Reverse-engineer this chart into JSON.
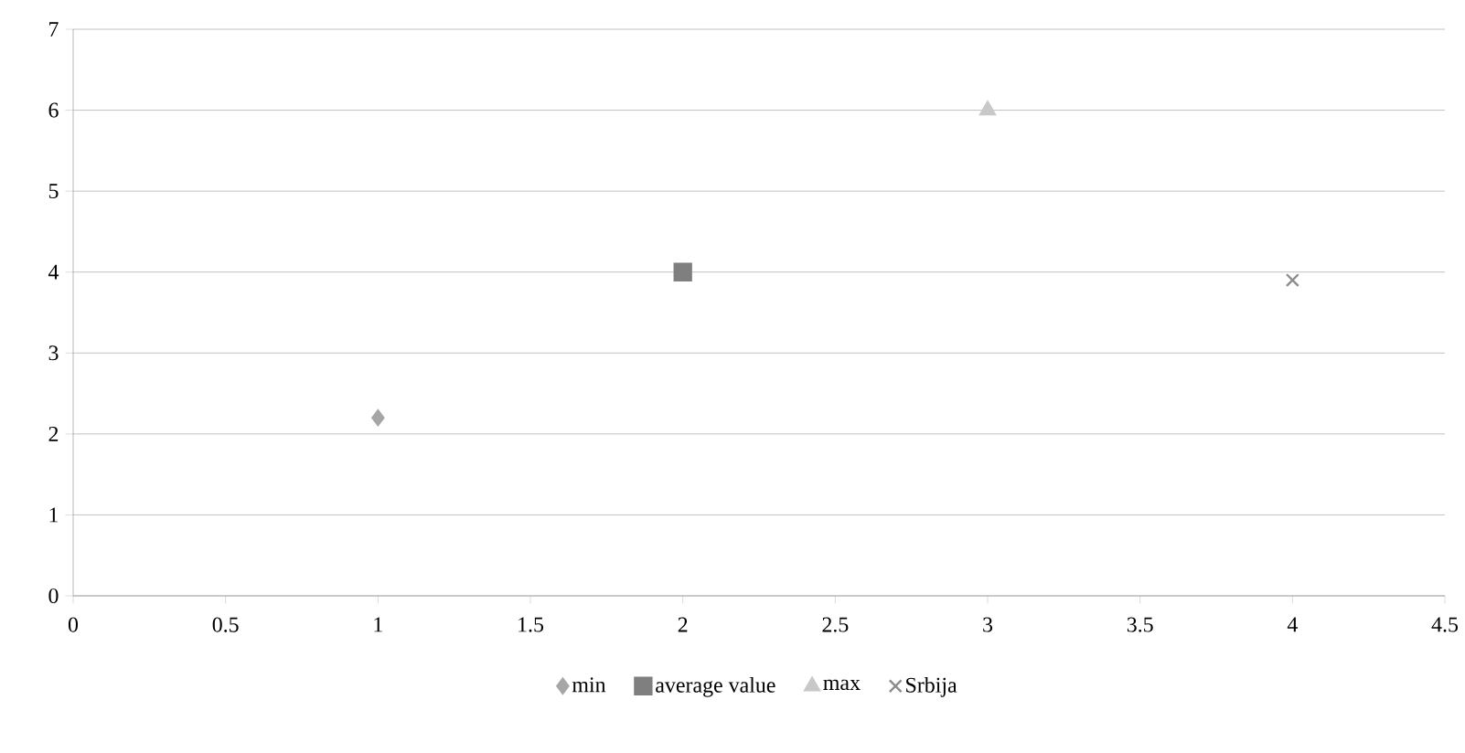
{
  "chart_data": {
    "type": "scatter",
    "xlim": [
      0,
      4.5
    ],
    "xticks": [
      0,
      0.5,
      1,
      1.5,
      2,
      2.5,
      3,
      3.5,
      4,
      4.5
    ],
    "ylim": [
      0,
      7
    ],
    "yticks": [
      0,
      1,
      2,
      3,
      4,
      5,
      6,
      7
    ],
    "grid": "y",
    "legend": "bottom",
    "series": [
      {
        "name": "min",
        "color": "#a6a6a6",
        "marker": "diamond",
        "x": [
          1
        ],
        "values": [
          2.2
        ]
      },
      {
        "name": "average value",
        "color": "#7f7f7f",
        "marker": "square",
        "x": [
          2
        ],
        "values": [
          4.0
        ]
      },
      {
        "name": "max",
        "color": "#c8c8c8",
        "marker": "triangle",
        "x": [
          3
        ],
        "values": [
          6.0
        ]
      },
      {
        "name": "Srbija",
        "color": "#8c8c8c",
        "marker": "cross",
        "x": [
          4
        ],
        "values": [
          3.9
        ]
      }
    ]
  }
}
